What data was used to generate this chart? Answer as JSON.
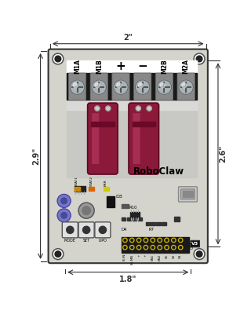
{
  "bg_color": "#ffffff",
  "board_color": "#d4d4cc",
  "board_outline": "#333333",
  "dim_color": "#333333",
  "cap_color": "#8b1a3a",
  "cap_shine": "#c04070",
  "dim_top": "2\"",
  "dim_left": "2.9\"",
  "dim_right": "2.6\"",
  "dim_bottom": "1.8\"",
  "terminal_labels": [
    "M1A",
    "M1B",
    "+",
    "-",
    "M2B",
    "M2A"
  ],
  "bottom_labels": [
    "B IN",
    "LB-MB",
    "+",
    "+",
    "EN1",
    "EN2",
    "S1",
    "S2",
    "S3"
  ],
  "mode_labels": [
    "MODE",
    "SET",
    "LIPO"
  ],
  "stat_labels": [
    "STAT1",
    "STAT2",
    "ERR"
  ],
  "roboclaw_text": "RoboClaw"
}
